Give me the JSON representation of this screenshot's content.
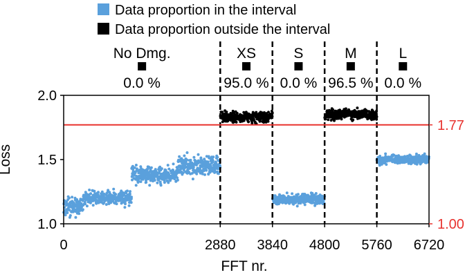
{
  "chart_data": {
    "type": "scatter",
    "xlabel": "FFT nr.",
    "ylabel": "Loss",
    "xlim": [
      0,
      6720
    ],
    "ylim": [
      1.0,
      2.0
    ],
    "x_ticks": [
      0,
      2880,
      3840,
      4800,
      5760,
      6720
    ],
    "x_tick_labels": [
      "0",
      "2880",
      "3840",
      "4800",
      "5760",
      "6720"
    ],
    "y_ticks": [
      1.0,
      1.5,
      2.0
    ],
    "y_tick_labels": [
      "1.0",
      "1.5",
      "2.0"
    ],
    "threshold": {
      "value": 1.77,
      "label": "1.77",
      "color": "#e8322e"
    },
    "right_axis_labels": [
      {
        "value": 1.77,
        "label": "1.77"
      },
      {
        "value": 1.0,
        "label": "1.00"
      }
    ],
    "dividers": [
      2880,
      3840,
      4800,
      5760
    ],
    "legend": {
      "placement": "top",
      "entries": [
        {
          "label": "Data proportion in the interval",
          "color": "#5aa0dc"
        },
        {
          "label": "Data proportion outside the interval",
          "color": "#000000"
        }
      ]
    },
    "segments": [
      {
        "name": "No Dmg.",
        "start": 0,
        "end": 2880,
        "percent": "0.0 %",
        "series": [
          {
            "start": 0,
            "end": 360,
            "mean": 1.13,
            "spread": 0.07
          },
          {
            "start": 360,
            "end": 1250,
            "mean": 1.2,
            "spread": 0.06
          },
          {
            "start": 1250,
            "end": 2100,
            "mean": 1.38,
            "spread": 0.07
          },
          {
            "start": 2100,
            "end": 2880,
            "mean": 1.45,
            "spread": 0.08
          }
        ]
      },
      {
        "name": "XS",
        "start": 2880,
        "end": 3840,
        "percent": "95.0 %",
        "series": [
          {
            "start": 2880,
            "end": 3840,
            "mean": 1.83,
            "spread": 0.04
          }
        ]
      },
      {
        "name": "S",
        "start": 3840,
        "end": 4800,
        "percent": "0.0 %",
        "series": [
          {
            "start": 3840,
            "end": 4800,
            "mean": 1.19,
            "spread": 0.04
          }
        ]
      },
      {
        "name": "M",
        "start": 4800,
        "end": 5760,
        "percent": "96.5 %",
        "series": [
          {
            "start": 4800,
            "end": 5760,
            "mean": 1.85,
            "spread": 0.04
          }
        ]
      },
      {
        "name": "L",
        "start": 5760,
        "end": 6720,
        "percent": "0.0 %",
        "series": [
          {
            "start": 5760,
            "end": 6720,
            "mean": 1.5,
            "spread": 0.035
          }
        ]
      }
    ],
    "colors": {
      "inside": "#5aa0dc",
      "outside": "#000000",
      "threshold": "#e8322e"
    },
    "grid": false
  }
}
